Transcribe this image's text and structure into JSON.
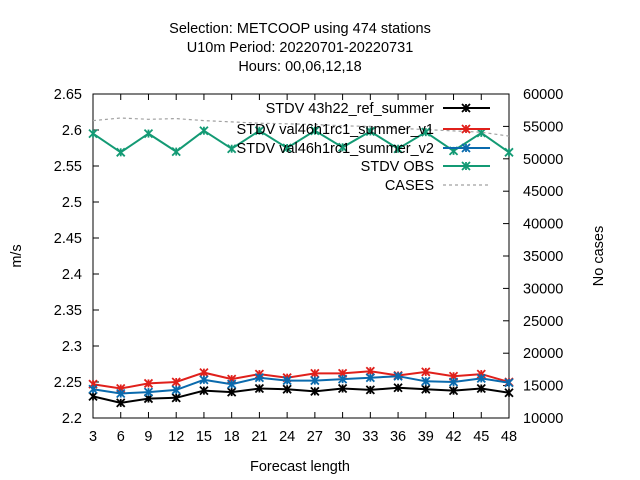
{
  "chart_data": {
    "type": "line",
    "title_lines": [
      "Selection: METCOOP using   474 stations",
      "U10m   Period: 20220701-20220731",
      "Hours:  00,06,12,18"
    ],
    "xlabel": "Forecast length",
    "ylabel": "m/s",
    "y2label": "No cases",
    "x": [
      3,
      6,
      9,
      12,
      15,
      18,
      21,
      24,
      27,
      30,
      33,
      36,
      39,
      42,
      45,
      48
    ],
    "xlim": [
      3,
      48
    ],
    "ylim": [
      2.2,
      2.65
    ],
    "y2lim": [
      10000,
      60000
    ],
    "yticks": [
      "2.2",
      "2.25",
      "2.3",
      "2.35",
      "2.4",
      "2.45",
      "2.5",
      "2.55",
      "2.6",
      "2.65"
    ],
    "y2ticks": [
      "10000",
      "15000",
      "20000",
      "25000",
      "30000",
      "35000",
      "40000",
      "45000",
      "50000",
      "55000",
      "60000"
    ],
    "grid": false,
    "legend_position": "top-right",
    "series": [
      {
        "name": "STDV 43h22_ref_summer",
        "legend_text": "STDV 43h22_ref_summer",
        "color": "#000000",
        "marker": "x",
        "axis": "left",
        "values": [
          2.23,
          2.221,
          2.227,
          2.228,
          2.238,
          2.236,
          2.241,
          2.24,
          2.237,
          2.241,
          2.239,
          2.242,
          2.24,
          2.238,
          2.241,
          2.235
        ]
      },
      {
        "name": "STDV val46h1rc1_summer_v1",
        "legend_text": "STDV val46h1rc1_summer_v1",
        "color": "#e0201b",
        "marker": "x",
        "axis": "left",
        "values": [
          2.247,
          2.241,
          2.248,
          2.25,
          2.263,
          2.254,
          2.261,
          2.256,
          2.262,
          2.262,
          2.265,
          2.259,
          2.264,
          2.258,
          2.261,
          2.25
        ]
      },
      {
        "name": "STDV val46h1rc1_summer_v2",
        "legend_text": "STDV val46h1rc1_summer_v2",
        "color": "#0a6aad",
        "marker": "x",
        "axis": "left",
        "values": [
          2.24,
          2.234,
          2.236,
          2.239,
          2.253,
          2.247,
          2.256,
          2.252,
          2.252,
          2.254,
          2.256,
          2.258,
          2.251,
          2.25,
          2.255,
          2.249
        ]
      },
      {
        "name": "STDV OBS",
        "legend_text": "STDV OBS",
        "color": "#139a74",
        "marker": "x",
        "axis": "left",
        "values": [
          2.595,
          2.569,
          2.595,
          2.57,
          2.599,
          2.574,
          2.599,
          2.575,
          2.599,
          2.576,
          2.598,
          2.574,
          2.597,
          2.571,
          2.596,
          2.569
        ]
      },
      {
        "name": "CASES",
        "legend_text": "CASES",
        "color": "#a0a0a0",
        "marker": "none",
        "dash": true,
        "axis": "right",
        "values": [
          55900,
          56300,
          56100,
          56200,
          55900,
          55700,
          55500,
          55400,
          55300,
          55100,
          55000,
          54700,
          54500,
          54300,
          54100,
          53500
        ]
      }
    ]
  }
}
